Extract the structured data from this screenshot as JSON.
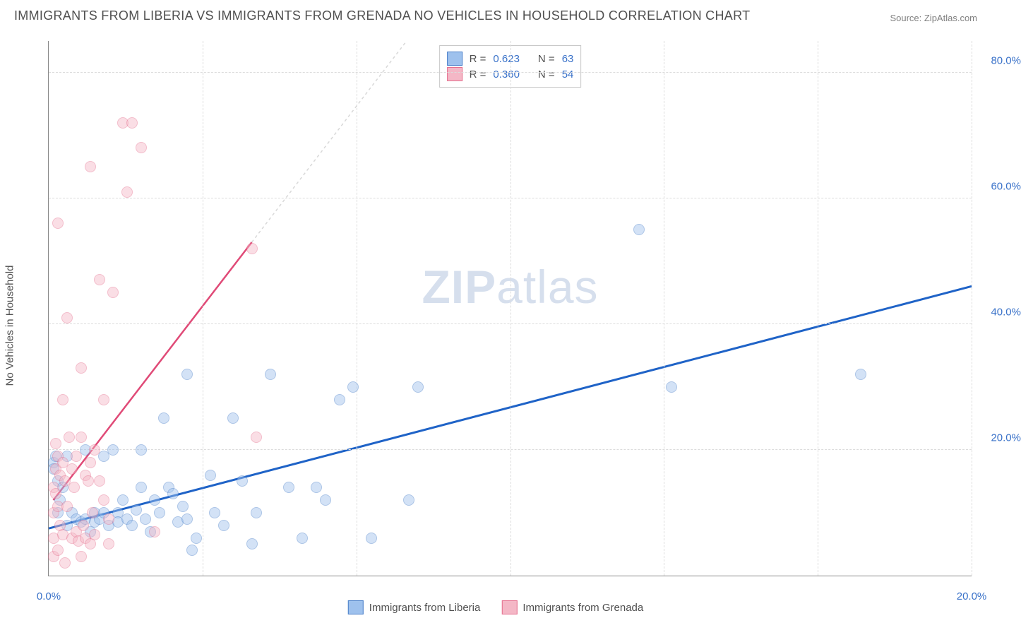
{
  "title": "IMMIGRANTS FROM LIBERIA VS IMMIGRANTS FROM GRENADA NO VEHICLES IN HOUSEHOLD CORRELATION CHART",
  "source_label": "Source: ZipAtlas.com",
  "y_axis_label": "No Vehicles in Household",
  "watermark": {
    "zip": "ZIP",
    "atlas": "atlas"
  },
  "chart": {
    "type": "scatter",
    "background_color": "#ffffff",
    "grid_color": "#dcdcdc",
    "axis_color": "#888888",
    "xlim": [
      0,
      20
    ],
    "ylim": [
      0,
      85
    ],
    "x_ticks": [
      0,
      20
    ],
    "x_tick_labels": [
      "0.0%",
      "20.0%"
    ],
    "x_grid": [
      3.33,
      6.67,
      10,
      13.33,
      16.67,
      20
    ],
    "y_ticks": [
      20,
      40,
      60,
      80
    ],
    "y_tick_labels": [
      "20.0%",
      "40.0%",
      "60.0%",
      "80.0%"
    ],
    "tick_fontsize": 15,
    "tick_color": "#3a72c9",
    "label_fontsize": 15,
    "label_color": "#505050",
    "marker_radius": 8,
    "marker_opacity": 0.45,
    "series": [
      {
        "id": "liberia",
        "label": "Immigrants from Liberia",
        "fill": "#9ec1ed",
        "stroke": "#4a7fc9",
        "trend_color": "#1f63c7",
        "trend_width": 3,
        "trend_dash_color": "#c5c5c5",
        "R": "0.623",
        "N": "63",
        "points": [
          [
            0.1,
            18
          ],
          [
            0.1,
            17
          ],
          [
            0.15,
            19
          ],
          [
            0.2,
            15
          ],
          [
            0.2,
            10
          ],
          [
            0.25,
            12
          ],
          [
            0.3,
            14
          ],
          [
            0.4,
            8
          ],
          [
            0.4,
            19
          ],
          [
            0.5,
            10
          ],
          [
            0.6,
            9
          ],
          [
            0.7,
            8.5
          ],
          [
            0.8,
            20
          ],
          [
            0.8,
            9
          ],
          [
            0.9,
            7
          ],
          [
            1.0,
            10
          ],
          [
            1.0,
            8.5
          ],
          [
            1.1,
            9
          ],
          [
            1.2,
            19
          ],
          [
            1.2,
            10
          ],
          [
            1.3,
            8
          ],
          [
            1.4,
            20
          ],
          [
            1.5,
            10
          ],
          [
            1.5,
            8.5
          ],
          [
            1.6,
            12
          ],
          [
            1.7,
            9
          ],
          [
            1.8,
            8
          ],
          [
            1.9,
            10.5
          ],
          [
            2.0,
            20
          ],
          [
            2.0,
            14
          ],
          [
            2.1,
            9
          ],
          [
            2.2,
            7
          ],
          [
            2.3,
            12
          ],
          [
            2.4,
            10
          ],
          [
            2.5,
            25
          ],
          [
            2.6,
            14
          ],
          [
            2.7,
            13
          ],
          [
            2.8,
            8.5
          ],
          [
            2.9,
            11
          ],
          [
            3.0,
            9
          ],
          [
            3.0,
            32
          ],
          [
            3.1,
            4
          ],
          [
            3.2,
            6
          ],
          [
            3.5,
            16
          ],
          [
            3.6,
            10
          ],
          [
            3.8,
            8
          ],
          [
            4.0,
            25
          ],
          [
            4.2,
            15
          ],
          [
            4.4,
            5
          ],
          [
            4.5,
            10
          ],
          [
            4.8,
            32
          ],
          [
            5.2,
            14
          ],
          [
            5.5,
            6
          ],
          [
            5.8,
            14
          ],
          [
            6.0,
            12
          ],
          [
            6.3,
            28
          ],
          [
            6.6,
            30
          ],
          [
            7.0,
            6
          ],
          [
            7.8,
            12
          ],
          [
            8.0,
            30
          ],
          [
            12.8,
            55
          ],
          [
            13.5,
            30
          ],
          [
            17.6,
            32
          ]
        ],
        "trend_line": {
          "x1": 0,
          "y1": 7.5,
          "x2": 20,
          "y2": 46
        }
      },
      {
        "id": "grenada",
        "label": "Immigrants from Grenada",
        "fill": "#f4b7c6",
        "stroke": "#e56f8e",
        "trend_color": "#e04a77",
        "trend_width": 2.5,
        "trend_dash_color": "#d8d8d8",
        "R": "0.360",
        "N": "54",
        "points": [
          [
            0.1,
            14
          ],
          [
            0.1,
            10
          ],
          [
            0.1,
            6
          ],
          [
            0.1,
            3
          ],
          [
            0.15,
            17
          ],
          [
            0.15,
            21
          ],
          [
            0.15,
            13
          ],
          [
            0.2,
            19
          ],
          [
            0.2,
            11
          ],
          [
            0.2,
            56
          ],
          [
            0.2,
            4
          ],
          [
            0.25,
            16
          ],
          [
            0.25,
            8
          ],
          [
            0.3,
            18
          ],
          [
            0.3,
            28
          ],
          [
            0.3,
            6.5
          ],
          [
            0.35,
            15
          ],
          [
            0.35,
            2
          ],
          [
            0.4,
            11
          ],
          [
            0.4,
            41
          ],
          [
            0.45,
            22
          ],
          [
            0.5,
            17
          ],
          [
            0.5,
            6
          ],
          [
            0.55,
            14
          ],
          [
            0.6,
            19
          ],
          [
            0.6,
            7
          ],
          [
            0.65,
            5.5
          ],
          [
            0.7,
            22
          ],
          [
            0.7,
            33
          ],
          [
            0.7,
            3
          ],
          [
            0.75,
            8
          ],
          [
            0.8,
            16
          ],
          [
            0.8,
            6
          ],
          [
            0.85,
            15
          ],
          [
            0.9,
            18
          ],
          [
            0.9,
            5
          ],
          [
            0.9,
            65
          ],
          [
            0.95,
            10
          ],
          [
            1.0,
            20
          ],
          [
            1.0,
            6.5
          ],
          [
            1.1,
            15
          ],
          [
            1.1,
            47
          ],
          [
            1.2,
            12
          ],
          [
            1.2,
            28
          ],
          [
            1.3,
            9
          ],
          [
            1.3,
            5
          ],
          [
            1.4,
            45
          ],
          [
            1.6,
            72
          ],
          [
            1.7,
            61
          ],
          [
            1.8,
            72
          ],
          [
            2.0,
            68
          ],
          [
            2.3,
            7
          ],
          [
            4.4,
            52
          ],
          [
            4.5,
            22
          ]
        ],
        "trend_line": {
          "x1": 0.1,
          "y1": 12,
          "x2": 4.4,
          "y2": 53
        }
      }
    ]
  },
  "stats_labels": {
    "R": "R =",
    "N": "N ="
  },
  "legend_bottom": {
    "items": [
      "liberia",
      "grenada"
    ]
  }
}
